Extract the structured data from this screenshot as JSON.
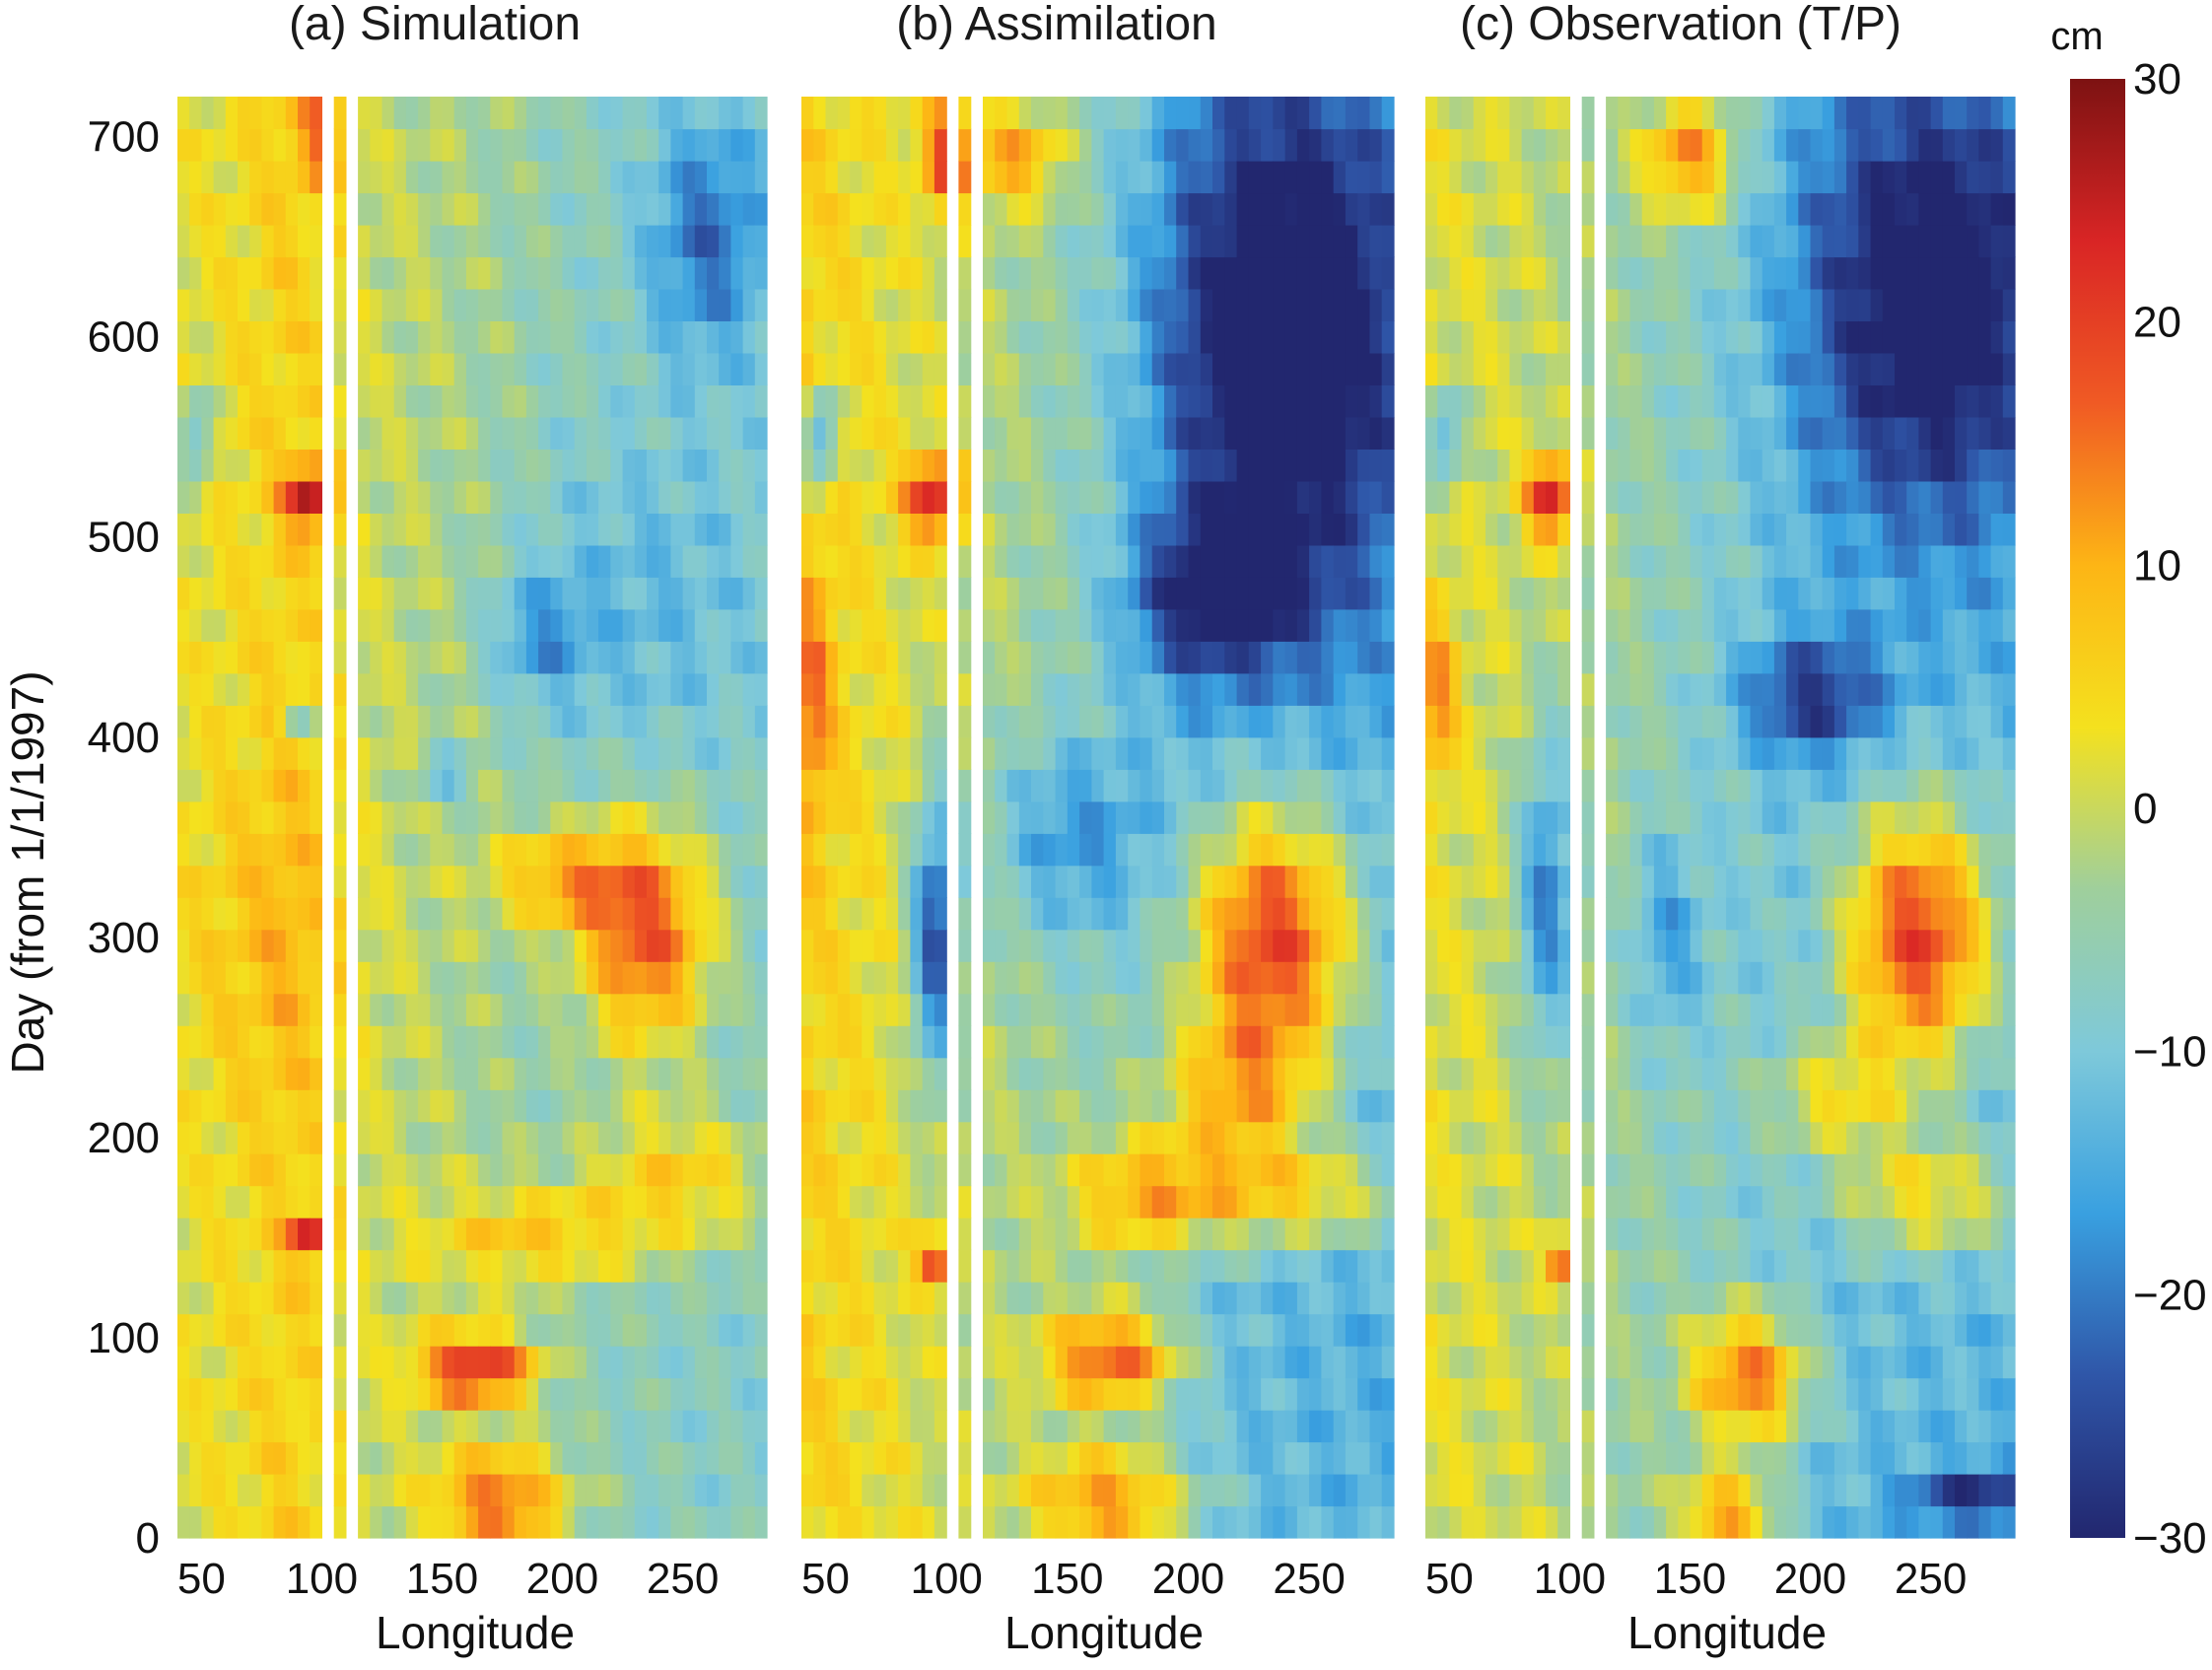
{
  "chart_data": {
    "type": "heatmap",
    "ylabel": "Day (from 1/1/1997)",
    "ylim": [
      0,
      720
    ],
    "y_ticks": [
      "0",
      "100",
      "200",
      "300",
      "400",
      "500",
      "600",
      "700"
    ],
    "colorbar": {
      "unit": "cm",
      "range": [
        -30,
        30
      ],
      "ticks": [
        "30",
        "20",
        "10",
        "0",
        "−10",
        "−20",
        "−30"
      ],
      "colors": [
        "#22276f",
        "#2f56a8",
        "#39a0e0",
        "#7ec9da",
        "#9fcf9c",
        "#f4e11e",
        "#fdb515",
        "#f05a24",
        "#d92525",
        "#7d1212"
      ]
    },
    "panels": [
      {
        "id": "a",
        "title": "(a) Simulation",
        "xlabel": "Longitude",
        "xlim": [
          40,
          285
        ],
        "x_ticks": [
          "50",
          "100",
          "150",
          "200",
          "250"
        ],
        "gaps": [
          [
            100,
            104
          ],
          [
            110,
            115
          ]
        ],
        "base": [
          [
            40,
            2
          ],
          [
            70,
            4
          ],
          [
            85,
            6
          ],
          [
            100,
            4
          ],
          [
            120,
            0
          ],
          [
            150,
            -2
          ],
          [
            200,
            -6
          ],
          [
            285,
            -8
          ]
        ],
        "blobs": [
          [
            235,
            300,
            28,
            55,
            24
          ],
          [
            200,
            330,
            30,
            25,
            15
          ],
          [
            250,
            180,
            40,
            35,
            13
          ],
          [
            190,
            150,
            45,
            25,
            12
          ],
          [
            165,
            85,
            25,
            18,
            26
          ],
          [
            175,
            20,
            28,
            25,
            20
          ],
          [
            260,
            650,
            25,
            60,
            -14
          ],
          [
            230,
            470,
            50,
            80,
            -6
          ],
          [
            190,
            450,
            20,
            30,
            -10
          ],
          [
            95,
            520,
            10,
            15,
            24
          ],
          [
            95,
            150,
            8,
            10,
            22
          ],
          [
            48,
            550,
            7,
            25,
            -14
          ],
          [
            150,
            380,
            10,
            15,
            -10
          ],
          [
            90,
            410,
            8,
            8,
            -12
          ],
          [
            100,
            700,
            10,
            25,
            12
          ],
          [
            80,
            300,
            40,
            80,
            4
          ]
        ]
      },
      {
        "id": "b",
        "title": "(b) Assimilation",
        "xlabel": "Longitude",
        "xlim": [
          40,
          285
        ],
        "x_ticks": [
          "50",
          "100",
          "150",
          "200",
          "250"
        ],
        "gaps": [
          [
            100,
            104
          ],
          [
            110,
            115
          ]
        ],
        "base": [
          [
            40,
            6
          ],
          [
            80,
            2
          ],
          [
            120,
            -2
          ],
          [
            160,
            -6
          ],
          [
            200,
            -12
          ],
          [
            285,
            -14
          ]
        ],
        "blobs": [
          [
            235,
            300,
            35,
            65,
            32
          ],
          [
            250,
            170,
            45,
            25,
            16
          ],
          [
            185,
            170,
            35,
            30,
            18
          ],
          [
            170,
            90,
            30,
            25,
            24
          ],
          [
            170,
            20,
            35,
            25,
            20
          ],
          [
            220,
            220,
            35,
            40,
            18
          ],
          [
            240,
            600,
            50,
            130,
            -26
          ],
          [
            210,
            470,
            35,
            40,
            -18
          ],
          [
            150,
            350,
            35,
            50,
            -12
          ],
          [
            95,
            300,
            10,
            70,
            -24
          ],
          [
            95,
            520,
            12,
            20,
            24
          ],
          [
            95,
            140,
            7,
            10,
            24
          ],
          [
            48,
            550,
            7,
            25,
            -20
          ],
          [
            100,
            690,
            10,
            25,
            20
          ],
          [
            130,
            690,
            20,
            25,
            14
          ],
          [
            45,
            420,
            8,
            60,
            10
          ]
        ]
      },
      {
        "id": "c",
        "title": "(c) Observation (T/P)",
        "xlabel": "Longitude",
        "xlim": [
          40,
          285
        ],
        "x_ticks": [
          "50",
          "100",
          "150",
          "200",
          "250"
        ],
        "gaps": [
          [
            100,
            103
          ],
          [
            108,
            113
          ]
        ],
        "base": [
          [
            40,
            2
          ],
          [
            80,
            0
          ],
          [
            120,
            -4
          ],
          [
            160,
            -8
          ],
          [
            200,
            -12
          ],
          [
            285,
            -13
          ]
        ],
        "blobs": [
          [
            245,
            300,
            32,
            65,
            32
          ],
          [
            250,
            170,
            40,
            30,
            16
          ],
          [
            175,
            80,
            25,
            35,
            24
          ],
          [
            165,
            15,
            20,
            15,
            22
          ],
          [
            150,
            690,
            20,
            30,
            20
          ],
          [
            250,
            620,
            50,
            110,
            -24
          ],
          [
            200,
            420,
            30,
            30,
            -16
          ],
          [
            90,
            320,
            12,
            80,
            -18
          ],
          [
            92,
            520,
            10,
            20,
            26
          ],
          [
            96,
            140,
            6,
            10,
            24
          ],
          [
            48,
            550,
            8,
            25,
            -16
          ],
          [
            270,
            20,
            30,
            15,
            -16
          ],
          [
            140,
            300,
            15,
            50,
            -10
          ],
          [
            45,
            420,
            8,
            40,
            12
          ],
          [
            210,
            220,
            30,
            30,
            14
          ]
        ]
      }
    ]
  }
}
